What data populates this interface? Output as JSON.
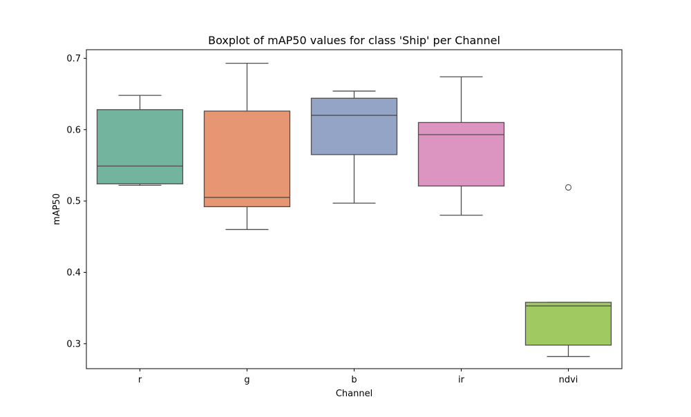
{
  "chart_data": {
    "type": "boxplot",
    "title": "Boxplot of mAP50 values for class 'Ship' per Channel",
    "xlabel": "Channel",
    "ylabel": "mAP50",
    "categories": [
      "r",
      "g",
      "b",
      "ir",
      "ndvi"
    ],
    "ylim": [
      0.265,
      0.712
    ],
    "yticks": [
      0.3,
      0.4,
      0.5,
      0.6,
      0.7
    ],
    "ytick_labels": [
      "0.3",
      "0.4",
      "0.5",
      "0.6",
      "0.7"
    ],
    "grid": false,
    "boxes": [
      {
        "category": "r",
        "whisker_low": 0.522,
        "q1": 0.524,
        "median": 0.549,
        "q3": 0.628,
        "whisker_high": 0.648,
        "outliers": [],
        "color": "#73b49f"
      },
      {
        "category": "g",
        "whisker_low": 0.46,
        "q1": 0.492,
        "median": 0.505,
        "q3": 0.626,
        "whisker_high": 0.693,
        "outliers": [],
        "color": "#e79674"
      },
      {
        "category": "b",
        "whisker_low": 0.497,
        "q1": 0.565,
        "median": 0.62,
        "q3": 0.644,
        "whisker_high": 0.654,
        "outliers": [],
        "color": "#93a4c6"
      },
      {
        "category": "ir",
        "whisker_low": 0.48,
        "q1": 0.521,
        "median": 0.593,
        "q3": 0.61,
        "whisker_high": 0.674,
        "outliers": [],
        "color": "#dc95c1"
      },
      {
        "category": "ndvi",
        "whisker_low": 0.282,
        "q1": 0.298,
        "median": 0.353,
        "q3": 0.358,
        "whisker_high": 0.358,
        "outliers": [
          0.519
        ],
        "color": "#a1c962"
      }
    ]
  }
}
